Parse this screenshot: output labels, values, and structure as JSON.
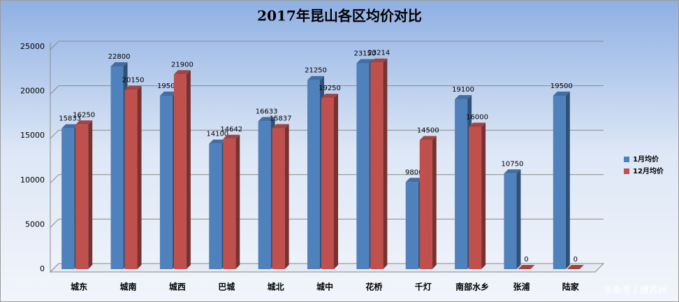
{
  "chart_data": {
    "type": "bar3d",
    "title": "2017年昆山各区均价对比",
    "categories": [
      "城东",
      "城南",
      "城西",
      "巴城",
      "城北",
      "城中",
      "花桥",
      "千灯",
      "南部水乡",
      "张浦",
      "陆家"
    ],
    "series": [
      {
        "name": "1月均价",
        "color": "#4f81bd",
        "values": [
          15833,
          22800,
          19500,
          14100,
          16633,
          21250,
          23150,
          9800,
          19100,
          10750,
          19500
        ]
      },
      {
        "name": "12月均价",
        "color": "#c0504d",
        "values": [
          16250,
          20150,
          21900,
          14642,
          15837,
          19250,
          23214,
          14500,
          16000,
          0,
          0
        ]
      }
    ],
    "ylim": [
      0,
      25000
    ],
    "yticks": [
      0,
      5000,
      10000,
      15000,
      20000,
      25000
    ],
    "grid": true,
    "legend": "right",
    "watermark": "头条号 / 爆苏州"
  }
}
